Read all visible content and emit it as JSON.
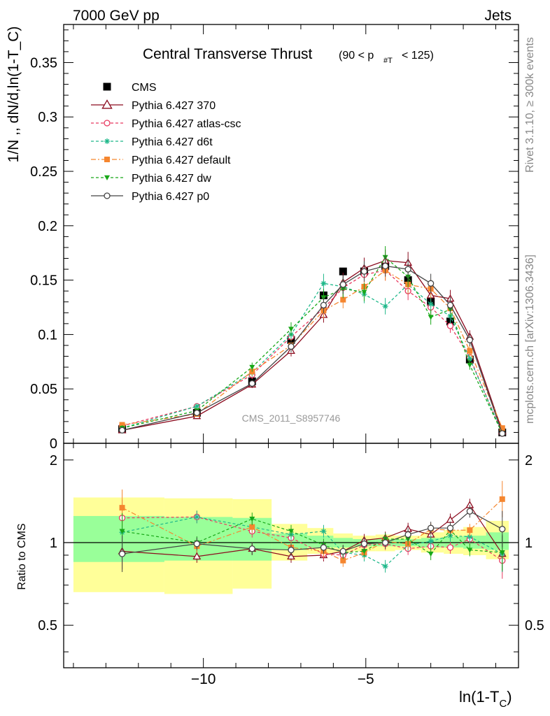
{
  "header": {
    "left": "7000 GeV pp",
    "right": "Jets"
  },
  "side": {
    "rivet": "Rivet 3.1.10, ≥ 300k events",
    "mcplots": "mcplots.cern.ch [arXiv:1306.3436]"
  },
  "chart_data": [
    {
      "type": "scatter",
      "title": "Central Transverse Thrust",
      "title_range": "(90 < p",
      "title_sub": "#T",
      "title_tail": "< 125)",
      "ylabel": "1/N ,, dN/d,ln(1-T_C)",
      "watermark": "CMS_2011_S8957746",
      "xlim": [
        -14.3,
        -0.3
      ],
      "ylim": [
        0,
        0.385
      ],
      "yticks": [
        "0",
        "0.05",
        "0.1",
        "0.15",
        "0.2",
        "0.25",
        "0.3",
        "0.35"
      ],
      "yticks_values": [
        0,
        0.05,
        0.1,
        0.15,
        0.2,
        0.25,
        0.3,
        0.35
      ],
      "legend_position": "top-left",
      "x": [
        -12.5,
        -10.2,
        -8.5,
        -7.3,
        -6.3,
        -5.7,
        -5.05,
        -4.4,
        -3.7,
        -3.0,
        -2.4,
        -1.8,
        -0.8
      ],
      "series": [
        {
          "name": "CMS",
          "color": "#000000",
          "marker": "square",
          "style": "none",
          "values": [
            0.013,
            0.028,
            0.057,
            0.095,
            0.136,
            0.158,
            0.158,
            0.163,
            0.15,
            0.13,
            0.112,
            0.077,
            0.01
          ]
        },
        {
          "name": "Pythia 6.427 370",
          "color": "#8b0a1e",
          "marker": "triangle-open",
          "style": "solid",
          "values": [
            0.012,
            0.025,
            0.054,
            0.085,
            0.118,
            0.148,
            0.161,
            0.168,
            0.166,
            0.136,
            0.133,
            0.098,
            0.011
          ]
        },
        {
          "name": "Pythia 6.427 atlas-csc",
          "color": "#e8385f",
          "marker": "circle-open",
          "style": "dashed",
          "values": [
            0.016,
            0.034,
            0.063,
            0.098,
            0.124,
            0.143,
            0.155,
            0.159,
            0.14,
            0.125,
            0.108,
            0.079,
            0.009
          ]
        },
        {
          "name": "Pythia 6.427 d6t",
          "color": "#1fb88a",
          "marker": "star",
          "style": "dashed",
          "values": [
            0.014,
            0.034,
            0.065,
            0.1,
            0.147,
            0.144,
            0.137,
            0.126,
            0.146,
            0.128,
            0.117,
            0.078,
            0.009
          ]
        },
        {
          "name": "Pythia 6.427 default",
          "color": "#f5862f",
          "marker": "square",
          "style": "dashdot",
          "values": [
            0.017,
            0.027,
            0.066,
            0.09,
            0.122,
            0.132,
            0.144,
            0.159,
            0.146,
            0.142,
            0.124,
            0.085,
            0.014
          ]
        },
        {
          "name": "Pythia 6.427 dw",
          "color": "#18a818",
          "marker": "triangle-down",
          "style": "dashed",
          "values": [
            0.014,
            0.03,
            0.07,
            0.105,
            0.134,
            0.142,
            0.139,
            0.171,
            0.153,
            0.116,
            0.123,
            0.072,
            0.009
          ]
        },
        {
          "name": "Pythia 6.427 p0",
          "color": "#444444",
          "marker": "circle-open",
          "style": "solid",
          "values": [
            0.012,
            0.028,
            0.055,
            0.089,
            0.127,
            0.146,
            0.158,
            0.163,
            0.16,
            0.147,
            0.127,
            0.095,
            0.009
          ]
        }
      ]
    },
    {
      "type": "scatter",
      "ylabel": "Ratio to CMS",
      "xlabel": "ln(1-T_C)",
      "xlim": [
        -14.3,
        -0.3
      ],
      "ylim": [
        0.35,
        2.3
      ],
      "yticks": [
        "0.5",
        "1",
        "2"
      ],
      "yticks_values": [
        0.5,
        1,
        2
      ],
      "xticks": [
        "−10",
        "−5"
      ],
      "xticks_values": [
        -10,
        -5
      ],
      "reference_line": 1,
      "bands": {
        "edges": [
          -14.0,
          -11.2,
          -9.1,
          -7.9,
          -6.8,
          -6.0,
          -5.4,
          -4.7,
          -4.1,
          -3.3,
          -2.6,
          -2.0,
          -1.3,
          -0.6
        ],
        "yellow": [
          [
            0.66,
            1.46
          ],
          [
            0.65,
            1.45
          ],
          [
            0.68,
            1.44
          ],
          [
            0.86,
            1.17
          ],
          [
            0.91,
            1.13
          ],
          [
            0.92,
            1.08
          ],
          [
            0.93,
            1.06
          ],
          [
            0.93,
            1.07
          ],
          [
            0.94,
            1.06
          ],
          [
            0.92,
            1.09
          ],
          [
            0.91,
            1.11
          ],
          [
            0.9,
            1.14
          ],
          [
            0.87,
            1.2
          ]
        ],
        "green": [
          [
            0.85,
            1.25
          ],
          [
            0.86,
            1.24
          ],
          [
            0.86,
            1.23
          ],
          [
            0.94,
            1.08
          ],
          [
            0.96,
            1.06
          ],
          [
            0.96,
            1.04
          ],
          [
            0.97,
            1.03
          ],
          [
            0.97,
            1.03
          ],
          [
            0.97,
            1.03
          ],
          [
            0.96,
            1.04
          ],
          [
            0.96,
            1.05
          ],
          [
            0.95,
            1.06
          ],
          [
            0.94,
            1.09
          ]
        ]
      },
      "series": [
        {
          "name": "Pythia 6.427 370",
          "values": [
            0.93,
            0.89,
            0.95,
            0.89,
            0.9,
            0.93,
            1.02,
            1.04,
            1.12,
            1.07,
            1.21,
            1.37,
            0.91
          ]
        },
        {
          "name": "Pythia 6.427 atlas-csc",
          "values": [
            1.23,
            1.24,
            1.1,
            1.04,
            0.91,
            0.9,
            0.98,
            0.99,
            0.95,
            0.97,
            0.96,
            1.03,
            0.86
          ]
        },
        {
          "name": "Pythia 6.427 d6t",
          "values": [
            1.09,
            1.24,
            1.14,
            1.07,
            1.1,
            0.92,
            0.9,
            0.82,
            0.98,
            1.01,
            1.06,
            1.05,
            0.91
          ]
        },
        {
          "name": "Pythia 6.427 default",
          "values": [
            1.34,
            0.97,
            1.14,
            0.96,
            0.93,
            0.86,
            0.92,
            1.01,
            0.99,
            1.12,
            1.11,
            1.11,
            1.44
          ]
        },
        {
          "name": "Pythia 6.427 dw",
          "values": [
            1.1,
            1.0,
            1.22,
            1.1,
            0.98,
            0.92,
            0.93,
            1.03,
            1.03,
            0.91,
            1.11,
            0.94,
            0.92
          ]
        },
        {
          "name": "Pythia 6.427 p0",
          "values": [
            0.91,
            0.99,
            0.95,
            0.94,
            0.96,
            0.93,
            0.99,
            1.0,
            1.07,
            1.13,
            1.13,
            1.3,
            1.12
          ]
        }
      ]
    }
  ]
}
